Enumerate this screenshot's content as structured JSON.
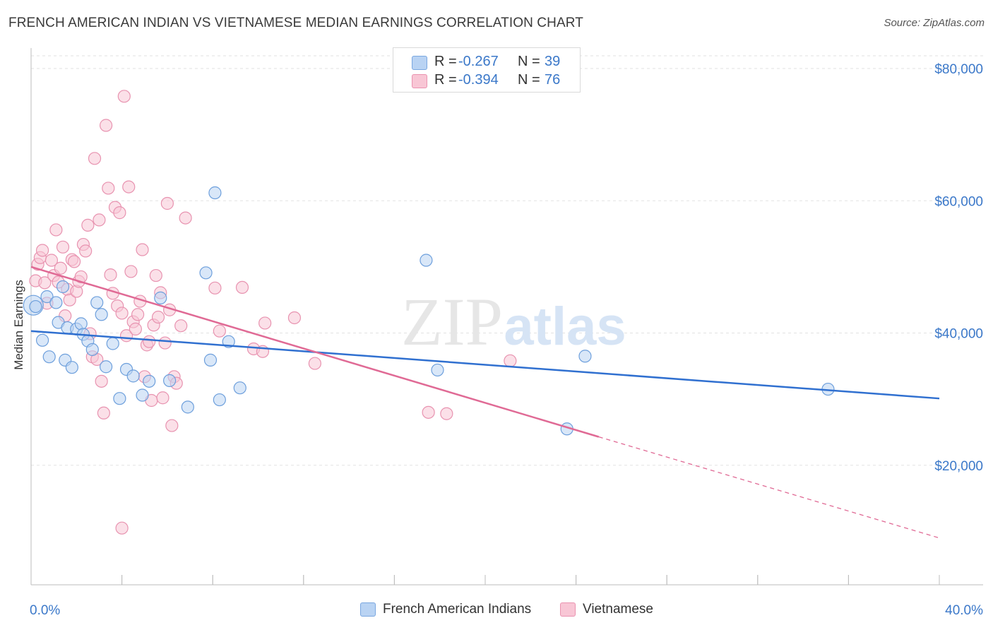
{
  "title": "FRENCH AMERICAN INDIAN VS VIETNAMESE MEDIAN EARNINGS CORRELATION CHART",
  "source": "Source: ZipAtlas.com",
  "watermark": {
    "zip": "ZIP",
    "atlas": "atlas"
  },
  "legend": {
    "rows": [
      {
        "r_label": "R =",
        "r_value": "-0.267",
        "n_label": "N =",
        "n_value": "39",
        "color": "#a9c8f0"
      },
      {
        "r_label": "R =",
        "r_value": "-0.394",
        "n_label": "N =",
        "n_value": "76",
        "color": "#f5b8cc"
      }
    ]
  },
  "bottom_legend": {
    "series1": "French American Indians",
    "series2": "Vietnamese"
  },
  "chart_data": {
    "type": "scatter",
    "title": "FRENCH AMERICAN INDIAN VS VIETNAMESE MEDIAN EARNINGS CORRELATION CHART",
    "xlabel": "",
    "ylabel": "Median Earnings",
    "xlim": [
      0,
      0.42
    ],
    "ylim": [
      0,
      82000
    ],
    "x_tick_labels": [
      "0.0%",
      "40.0%"
    ],
    "y_ticks": [
      20000,
      40000,
      60000,
      80000
    ],
    "y_tick_labels": [
      "$20,000",
      "$40,000",
      "$60,000",
      "$80,000"
    ],
    "grid": true,
    "series": [
      {
        "name": "French American Indians",
        "color": "#3070d0",
        "fill": "#b9d3f3",
        "R": -0.267,
        "N": 39,
        "trend": {
          "x0": 0.0,
          "y0": 40300,
          "x1": 0.4,
          "y1": 30100,
          "dashed_to": null
        },
        "points": [
          [
            0.001,
            44200
          ],
          [
            0.005,
            38900
          ],
          [
            0.007,
            45500
          ],
          [
            0.008,
            36400
          ],
          [
            0.011,
            44600
          ],
          [
            0.012,
            41600
          ],
          [
            0.014,
            47000
          ],
          [
            0.015,
            35900
          ],
          [
            0.016,
            40800
          ],
          [
            0.018,
            34800
          ],
          [
            0.02,
            40600
          ],
          [
            0.022,
            41400
          ],
          [
            0.023,
            39800
          ],
          [
            0.025,
            38800
          ],
          [
            0.027,
            37500
          ],
          [
            0.029,
            44600
          ],
          [
            0.031,
            42800
          ],
          [
            0.033,
            34900
          ],
          [
            0.036,
            38400
          ],
          [
            0.039,
            30100
          ],
          [
            0.042,
            34500
          ],
          [
            0.045,
            33500
          ],
          [
            0.049,
            30600
          ],
          [
            0.052,
            32700
          ],
          [
            0.057,
            45300
          ],
          [
            0.061,
            32800
          ],
          [
            0.069,
            28800
          ],
          [
            0.077,
            49100
          ],
          [
            0.079,
            35900
          ],
          [
            0.081,
            61200
          ],
          [
            0.083,
            29900
          ],
          [
            0.087,
            38700
          ],
          [
            0.092,
            31700
          ],
          [
            0.174,
            51000
          ],
          [
            0.179,
            34400
          ],
          [
            0.236,
            25500
          ],
          [
            0.244,
            36500
          ],
          [
            0.351,
            31500
          ],
          [
            0.002,
            44000
          ]
        ]
      },
      {
        "name": "Vietnamese",
        "color": "#e06a95",
        "fill": "#f8c6d5",
        "R": -0.394,
        "N": 76,
        "trend": {
          "x0": 0.0,
          "y0": 50000,
          "x1": 0.25,
          "y1": 24300,
          "dashed_to": [
            0.4,
            9000
          ]
        },
        "points": [
          [
            0.002,
            47900
          ],
          [
            0.003,
            50400
          ],
          [
            0.004,
            51400
          ],
          [
            0.005,
            52500
          ],
          [
            0.006,
            47600
          ],
          [
            0.007,
            44500
          ],
          [
            0.009,
            51000
          ],
          [
            0.01,
            48700
          ],
          [
            0.011,
            55600
          ],
          [
            0.012,
            47700
          ],
          [
            0.013,
            49800
          ],
          [
            0.014,
            53000
          ],
          [
            0.015,
            42600
          ],
          [
            0.016,
            46600
          ],
          [
            0.017,
            45000
          ],
          [
            0.018,
            51100
          ],
          [
            0.019,
            50800
          ],
          [
            0.02,
            46300
          ],
          [
            0.021,
            47800
          ],
          [
            0.022,
            48500
          ],
          [
            0.023,
            53400
          ],
          [
            0.024,
            52400
          ],
          [
            0.025,
            56300
          ],
          [
            0.026,
            39900
          ],
          [
            0.027,
            36400
          ],
          [
            0.028,
            66400
          ],
          [
            0.029,
            36000
          ],
          [
            0.03,
            57100
          ],
          [
            0.031,
            32700
          ],
          [
            0.032,
            27900
          ],
          [
            0.033,
            71400
          ],
          [
            0.034,
            61900
          ],
          [
            0.035,
            48800
          ],
          [
            0.036,
            46000
          ],
          [
            0.037,
            59000
          ],
          [
            0.038,
            44100
          ],
          [
            0.039,
            58200
          ],
          [
            0.04,
            10500
          ],
          [
            0.041,
            75800
          ],
          [
            0.042,
            39600
          ],
          [
            0.043,
            62100
          ],
          [
            0.044,
            49300
          ],
          [
            0.045,
            41700
          ],
          [
            0.046,
            40600
          ],
          [
            0.047,
            42800
          ],
          [
            0.048,
            44800
          ],
          [
            0.049,
            52600
          ],
          [
            0.05,
            33400
          ],
          [
            0.051,
            38200
          ],
          [
            0.052,
            38700
          ],
          [
            0.053,
            29800
          ],
          [
            0.054,
            41200
          ],
          [
            0.055,
            48700
          ],
          [
            0.056,
            42400
          ],
          [
            0.057,
            46100
          ],
          [
            0.058,
            30200
          ],
          [
            0.059,
            38500
          ],
          [
            0.06,
            59600
          ],
          [
            0.061,
            43500
          ],
          [
            0.062,
            26000
          ],
          [
            0.063,
            33400
          ],
          [
            0.064,
            32400
          ],
          [
            0.066,
            41100
          ],
          [
            0.068,
            57400
          ],
          [
            0.081,
            46800
          ],
          [
            0.083,
            40300
          ],
          [
            0.093,
            46900
          ],
          [
            0.098,
            37600
          ],
          [
            0.102,
            37200
          ],
          [
            0.103,
            41500
          ],
          [
            0.116,
            42300
          ],
          [
            0.125,
            35400
          ],
          [
            0.175,
            28000
          ],
          [
            0.183,
            27800
          ],
          [
            0.211,
            35800
          ],
          [
            0.04,
            43000
          ]
        ]
      }
    ]
  }
}
